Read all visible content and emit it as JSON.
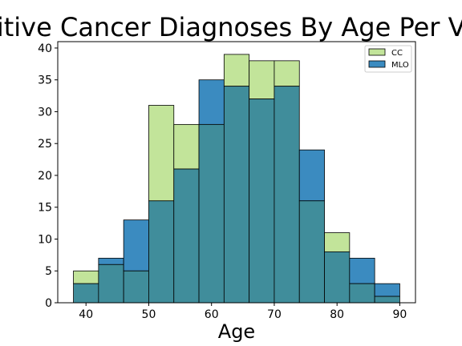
{
  "chart_data": {
    "type": "bar",
    "title": "Positive Cancer Diagnoses By Age Per View",
    "xlabel": "Age",
    "ylabel": "",
    "xlim": [
      35.5,
      92.5
    ],
    "ylim": [
      0,
      41
    ],
    "x_ticks": [
      40,
      50,
      60,
      70,
      80,
      90
    ],
    "y_ticks": [
      0,
      5,
      10,
      15,
      20,
      25,
      30,
      35,
      40
    ],
    "bin_edges": [
      38,
      42,
      46,
      50,
      54,
      58,
      62,
      66,
      70,
      74,
      78,
      82,
      86,
      90
    ],
    "legend_position": "top-right",
    "series": [
      {
        "name": "CC",
        "color": "#c2e49a",
        "values": [
          5,
          6,
          5,
          31,
          28,
          28,
          39,
          38,
          38,
          16,
          11,
          3,
          1
        ]
      },
      {
        "name": "MLO",
        "color": "#3b8bc0",
        "values": [
          3,
          7,
          13,
          16,
          21,
          35,
          34,
          32,
          34,
          24,
          8,
          7,
          3
        ]
      }
    ],
    "overlap_color": "#408d9b"
  }
}
